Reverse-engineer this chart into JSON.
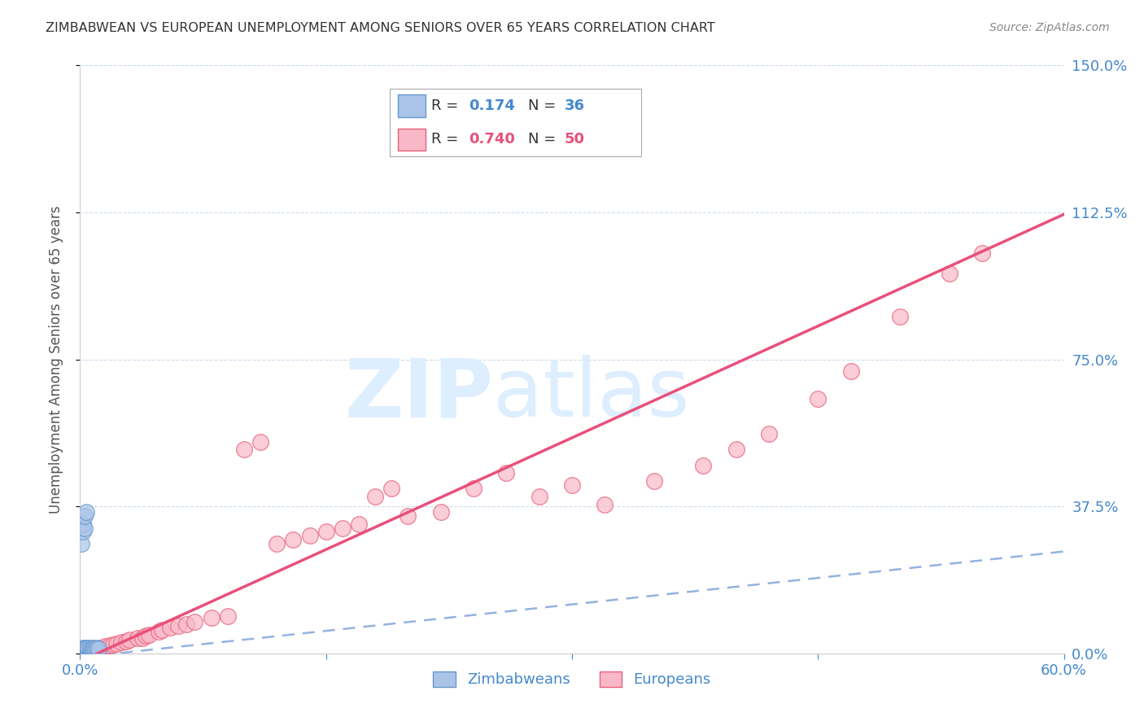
{
  "title": "ZIMBABWEAN VS EUROPEAN UNEMPLOYMENT AMONG SENIORS OVER 65 YEARS CORRELATION CHART",
  "source": "Source: ZipAtlas.com",
  "ylabel": "Unemployment Among Seniors over 65 years",
  "xlim": [
    0.0,
    0.6
  ],
  "ylim": [
    0.0,
    1.5
  ],
  "yticks": [
    0.0,
    0.375,
    0.75,
    1.125,
    1.5
  ],
  "ytick_labels": [
    "0.0%",
    "37.5%",
    "75.0%",
    "112.5%",
    "150.0%"
  ],
  "xticks": [
    0.0,
    0.15,
    0.3,
    0.45,
    0.6
  ],
  "xtick_labels": [
    "0.0%",
    "",
    "",
    "",
    "60.0%"
  ],
  "legend_labels": [
    "Zimbabweans",
    "Europeans"
  ],
  "zimbabwe_R": 0.174,
  "zimbabwe_N": 36,
  "european_R": 0.74,
  "european_N": 50,
  "blue_color": "#aac4e8",
  "blue_edge_color": "#6699cc",
  "blue_line_color": "#88aadd",
  "pink_color": "#f9b8c8",
  "pink_edge_color": "#e8607a",
  "pink_line_color": "#e8507a",
  "axis_color": "#4488cc",
  "grid_color": "#ccddee",
  "watermark_color": "#dce8f5",
  "background_color": "#ffffff",
  "zim_x": [
    0.001,
    0.001,
    0.001,
    0.002,
    0.002,
    0.002,
    0.002,
    0.003,
    0.003,
    0.003,
    0.003,
    0.003,
    0.004,
    0.004,
    0.004,
    0.004,
    0.005,
    0.005,
    0.005,
    0.005,
    0.006,
    0.006,
    0.006,
    0.007,
    0.007,
    0.008,
    0.008,
    0.009,
    0.01,
    0.011,
    0.001,
    0.002,
    0.002,
    0.003,
    0.003,
    0.004
  ],
  "zim_y": [
    0.005,
    0.008,
    0.01,
    0.005,
    0.008,
    0.012,
    0.015,
    0.005,
    0.008,
    0.01,
    0.012,
    0.015,
    0.005,
    0.008,
    0.01,
    0.015,
    0.005,
    0.008,
    0.012,
    0.015,
    0.005,
    0.01,
    0.015,
    0.008,
    0.012,
    0.01,
    0.015,
    0.012,
    0.015,
    0.012,
    0.28,
    0.31,
    0.33,
    0.32,
    0.35,
    0.36
  ],
  "eur_x": [
    0.003,
    0.005,
    0.008,
    0.01,
    0.012,
    0.015,
    0.018,
    0.02,
    0.022,
    0.025,
    0.028,
    0.03,
    0.035,
    0.038,
    0.04,
    0.042,
    0.048,
    0.05,
    0.055,
    0.06,
    0.065,
    0.07,
    0.08,
    0.09,
    0.1,
    0.11,
    0.12,
    0.13,
    0.14,
    0.15,
    0.16,
    0.17,
    0.18,
    0.19,
    0.2,
    0.22,
    0.24,
    0.26,
    0.28,
    0.3,
    0.32,
    0.35,
    0.38,
    0.4,
    0.42,
    0.45,
    0.47,
    0.5,
    0.53,
    0.55
  ],
  "eur_y": [
    0.005,
    0.008,
    0.01,
    0.012,
    0.015,
    0.018,
    0.02,
    0.022,
    0.025,
    0.028,
    0.03,
    0.035,
    0.038,
    0.04,
    0.045,
    0.048,
    0.055,
    0.06,
    0.065,
    0.07,
    0.075,
    0.08,
    0.09,
    0.095,
    0.52,
    0.54,
    0.28,
    0.29,
    0.3,
    0.31,
    0.32,
    0.33,
    0.4,
    0.42,
    0.35,
    0.36,
    0.42,
    0.46,
    0.4,
    0.43,
    0.38,
    0.44,
    0.48,
    0.52,
    0.56,
    0.65,
    0.72,
    0.86,
    0.97,
    1.02
  ],
  "zim_trend_x": [
    0.0,
    0.6
  ],
  "zim_trend_y": [
    -0.01,
    0.26
  ],
  "eur_trend_x": [
    0.0,
    0.6
  ],
  "eur_trend_y": [
    -0.02,
    1.12
  ]
}
